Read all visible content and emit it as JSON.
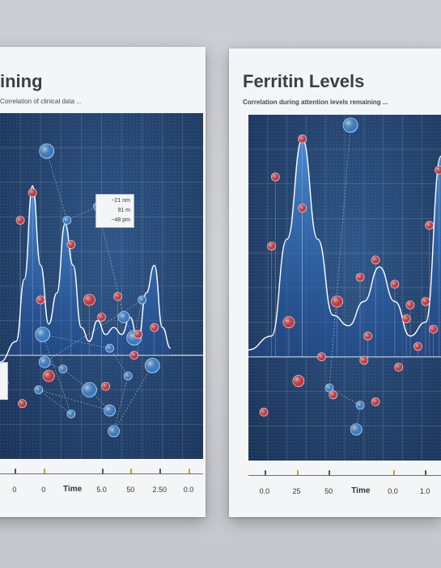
{
  "panels": [
    {
      "title": "ining",
      "subtitle": "Correlation  of clinical data ...",
      "axis_title": "Time",
      "tick_labels": [
        "0",
        "0",
        "5.0",
        "50",
        "2.50",
        "0.0"
      ],
      "legend": [
        "~21 nm",
        "91 m",
        "~48 pm"
      ]
    },
    {
      "title": "Ferritin Levels",
      "subtitle": "Correlation  during  attention  levels  remaining ...",
      "axis_title": "Time",
      "tick_labels": [
        "0.0",
        "25",
        "50",
        "0.0",
        "1.0"
      ],
      "legend": []
    }
  ],
  "chart_data": [
    {
      "type": "line",
      "title": "ining",
      "subtitle": "Correlation  of clinical data ...",
      "xlabel": "Time",
      "ylabel": "",
      "xlim": [
        0,
        10
      ],
      "ylim": [
        0,
        10
      ],
      "grid": true,
      "legend_entries": [
        "~21 nm",
        "91 m",
        "~48 pm"
      ],
      "tick_labels": [
        "0",
        "0",
        "5.0",
        "50",
        "2.50",
        "0.0"
      ],
      "colors": {
        "red_points": "#d9363e",
        "blue_points": "#3a85d4",
        "curve": "#ffffff",
        "fill": "#4a8fd6"
      },
      "series": [
        {
          "name": "",
          "color": "#ffffff",
          "x": [
            0.0,
            0.8,
            1.2,
            1.6,
            2.0,
            2.4,
            2.8,
            3.2,
            3.6,
            4.0,
            4.4,
            4.8,
            5.2,
            5.6,
            6.0,
            6.4,
            6.8,
            7.2,
            7.6,
            8.0,
            8.4
          ],
          "y": [
            2.8,
            3.4,
            5.2,
            7.9,
            5.6,
            3.9,
            4.8,
            6.8,
            5.6,
            3.8,
            3.4,
            4.0,
            3.6,
            3.8,
            3.6,
            4.1,
            3.4,
            4.8,
            5.6,
            3.8,
            3.2
          ]
        },
        {
          "name": "",
          "color": "#3a85d4",
          "type": "scatter",
          "x": [
            2.3,
            3.3,
            4.8,
            6.1,
            6.6,
            7.0,
            2.2,
            3.1,
            4.4,
            5.4,
            1.9,
            3.5,
            2.1,
            5.4,
            6.3,
            5.6,
            7.5
          ],
          "y": [
            8.9,
            6.9,
            7.3,
            4.1,
            3.5,
            4.6,
            2.8,
            2.6,
            2.0,
            1.4,
            2.0,
            1.3,
            3.6,
            3.2,
            2.4,
            0.8,
            2.7
          ]
        },
        {
          "name": "",
          "color": "#d9363e",
          "type": "scatter",
          "x": [
            1.0,
            1.6,
            3.5,
            4.4,
            2.0,
            5.0,
            5.8,
            6.8,
            7.6,
            0.2,
            2.4,
            5.2,
            1.1,
            6.6
          ],
          "y": [
            6.9,
            7.7,
            6.2,
            4.6,
            4.6,
            4.1,
            4.7,
            3.6,
            3.8,
            2.2,
            2.4,
            2.1,
            1.6,
            3.0
          ]
        }
      ]
    },
    {
      "type": "line",
      "title": "Ferritin Levels",
      "subtitle": "Correlation  during  attention  levels  remaining ...",
      "xlabel": "Time",
      "ylabel": "",
      "xlim": [
        0,
        10
      ],
      "ylim": [
        0,
        10
      ],
      "grid": true,
      "legend_entries": [],
      "tick_labels": [
        "0.0",
        "25",
        "50",
        "0.0",
        "1.0"
      ],
      "colors": {
        "red_points": "#d9363e",
        "blue_points": "#3a85d4",
        "curve": "#ffffff",
        "fill": "#4a8fd6"
      },
      "series": [
        {
          "name": "",
          "color": "#ffffff",
          "x": [
            0.0,
            1.2,
            2.0,
            2.8,
            3.6,
            4.4,
            5.2,
            6.0,
            6.8,
            7.6,
            8.4,
            9.2,
            10.0
          ],
          "y": [
            3.2,
            3.6,
            6.4,
            9.3,
            6.4,
            4.2,
            3.9,
            4.6,
            5.6,
            4.6,
            3.6,
            4.0,
            8.8
          ]
        },
        {
          "name": "",
          "color": "#3a85d4",
          "type": "scatter",
          "x": [
            5.3,
            4.2,
            5.8,
            5.6
          ],
          "y": [
            9.7,
            2.1,
            1.6,
            0.9
          ]
        },
        {
          "name": "",
          "color": "#d9363e",
          "type": "scatter",
          "x": [
            1.4,
            2.8,
            2.8,
            4.6,
            5.8,
            6.6,
            7.6,
            8.4,
            9.2,
            1.2,
            2.1,
            3.8,
            6.2,
            7.8,
            8.8,
            9.6,
            0.8,
            2.6,
            4.4,
            6.0,
            6.6,
            8.2,
            9.4,
            9.9
          ],
          "y": [
            8.2,
            9.3,
            7.3,
            4.6,
            5.3,
            5.8,
            5.1,
            4.5,
            4.6,
            6.2,
            4.0,
            3.0,
            3.6,
            2.7,
            3.3,
            3.8,
            1.4,
            2.3,
            1.9,
            2.9,
            1.7,
            4.1,
            6.8,
            8.4
          ]
        }
      ]
    }
  ]
}
